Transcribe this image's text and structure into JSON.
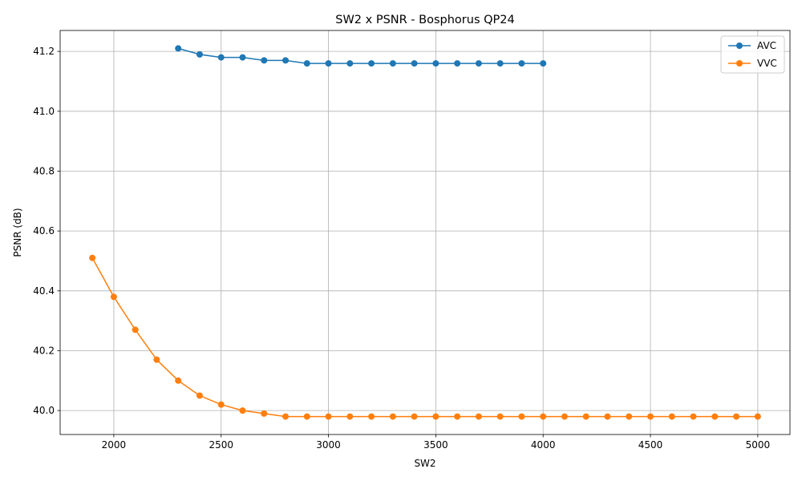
{
  "chart_data": {
    "type": "line",
    "title": "SW2 x PSNR - Bosphorus QP24",
    "xlabel": "SW2",
    "ylabel": "PSNR (dB)",
    "xlim": [
      1750,
      5150
    ],
    "ylim": [
      39.92,
      41.27
    ],
    "xticks": [
      2000,
      2500,
      3000,
      3500,
      4000,
      4500,
      5000
    ],
    "yticks": [
      40.0,
      40.2,
      40.4,
      40.6,
      40.8,
      41.0,
      41.2
    ],
    "xtick_labels": [
      "2000",
      "2500",
      "3000",
      "3500",
      "4000",
      "4500",
      "5000"
    ],
    "ytick_labels": [
      "40.0",
      "40.2",
      "40.4",
      "40.6",
      "40.8",
      "41.0",
      "41.2"
    ],
    "grid": true,
    "legend_position": "upper right",
    "series": [
      {
        "name": "AVC",
        "color": "#1f77b4",
        "x": [
          2300,
          2400,
          2500,
          2600,
          2700,
          2800,
          2900,
          3000,
          3100,
          3200,
          3300,
          3400,
          3500,
          3600,
          3700,
          3800,
          3900,
          4000
        ],
        "y": [
          41.21,
          41.19,
          41.18,
          41.18,
          41.17,
          41.17,
          41.16,
          41.16,
          41.16,
          41.16,
          41.16,
          41.16,
          41.16,
          41.16,
          41.16,
          41.16,
          41.16,
          41.16
        ]
      },
      {
        "name": "VVC",
        "color": "#ff7f0e",
        "x": [
          1900,
          2000,
          2100,
          2200,
          2300,
          2400,
          2500,
          2600,
          2700,
          2800,
          2900,
          3000,
          3100,
          3200,
          3300,
          3400,
          3500,
          3600,
          3700,
          3800,
          3900,
          4000,
          4100,
          4200,
          4300,
          4400,
          4500,
          4600,
          4700,
          4800,
          4900,
          5000
        ],
        "y": [
          40.51,
          40.38,
          40.27,
          40.17,
          40.1,
          40.05,
          40.02,
          40.0,
          39.99,
          39.98,
          39.98,
          39.98,
          39.98,
          39.98,
          39.98,
          39.98,
          39.98,
          39.98,
          39.98,
          39.98,
          39.98,
          39.98,
          39.98,
          39.98,
          39.98,
          39.98,
          39.98,
          39.98,
          39.98,
          39.98,
          39.98,
          39.98
        ]
      }
    ]
  }
}
